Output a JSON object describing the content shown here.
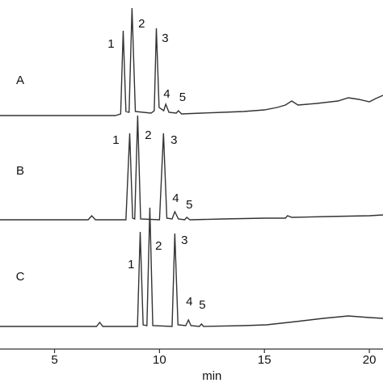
{
  "chart_data": [
    {
      "type": "line",
      "label": "A",
      "color": "#333333",
      "xlim": [
        2.4,
        20.65
      ],
      "ylim": [
        0,
        150
      ],
      "x": [
        2.4,
        7.9,
        8.15,
        8.27,
        8.4,
        8.55,
        8.69,
        8.85,
        9.6,
        9.75,
        9.85,
        9.98,
        10.2,
        10.3,
        10.45,
        10.8,
        10.9,
        11.05,
        12,
        13,
        14,
        15,
        15.6,
        16.0,
        16.3,
        16.6,
        17.5,
        18.5,
        19.0,
        19.5,
        20.0,
        20.3,
        20.65
      ],
      "values": [
        0,
        0,
        2,
        105,
        5,
        4,
        133,
        5,
        3,
        6,
        108,
        10,
        6,
        14,
        4,
        3,
        6,
        2,
        3,
        4,
        5,
        7,
        10,
        13,
        18,
        13,
        15,
        18,
        22,
        20,
        17,
        21,
        25
      ],
      "annotations": [
        {
          "text": "1",
          "x": 7.69,
          "y": 88
        },
        {
          "text": "2",
          "x": 9.15,
          "y": 113
        },
        {
          "text": "3",
          "x": 10.27,
          "y": 95
        },
        {
          "text": "4",
          "x": 10.35,
          "y": 26
        },
        {
          "text": "5",
          "x": 11.1,
          "y": 22
        }
      ]
    },
    {
      "type": "line",
      "label": "B",
      "color": "#333333",
      "xlim": [
        2.4,
        20.65
      ],
      "ylim": [
        0,
        150
      ],
      "x": [
        2.4,
        6.6,
        6.77,
        6.95,
        8.4,
        8.58,
        8.72,
        8.82,
        8.96,
        9.1,
        10.0,
        10.19,
        10.35,
        10.6,
        10.73,
        10.9,
        11.2,
        11.3,
        11.45,
        13,
        15,
        16.0,
        16.1,
        16.3,
        18,
        20,
        20.65
      ],
      "values": [
        0,
        0,
        5,
        0,
        0,
        107,
        2,
        1,
        129,
        1,
        0,
        107,
        2,
        1,
        10,
        1,
        0,
        3,
        0,
        1,
        2,
        2,
        5,
        3,
        4,
        5,
        6
      ],
      "annotations": [
        {
          "text": "1",
          "x": 7.92,
          "y": 98
        },
        {
          "text": "2",
          "x": 9.46,
          "y": 104
        },
        {
          "text": "3",
          "x": 10.69,
          "y": 98
        },
        {
          "text": "4",
          "x": 10.77,
          "y": 26
        },
        {
          "text": "5",
          "x": 11.42,
          "y": 18
        }
      ]
    },
    {
      "type": "line",
      "label": "C",
      "color": "#333333",
      "xlim": [
        2.4,
        20.65
      ],
      "ylim": [
        0,
        150
      ],
      "x": [
        2.4,
        7.0,
        7.15,
        7.3,
        8.95,
        9.08,
        9.22,
        9.4,
        9.54,
        9.68,
        10.6,
        10.73,
        10.88,
        11.25,
        11.38,
        11.5,
        11.9,
        12.0,
        12.1,
        14,
        15.1,
        16.5,
        17.8,
        19.0,
        20.0,
        20.65
      ],
      "values": [
        0,
        0,
        5,
        0,
        0,
        117,
        2,
        1,
        147,
        1,
        0,
        115,
        2,
        1,
        8,
        1,
        0,
        3,
        0,
        1,
        2,
        6,
        10,
        13,
        11,
        10
      ],
      "annotations": [
        {
          "text": "1",
          "x": 8.65,
          "y": 76
        },
        {
          "text": "2",
          "x": 9.96,
          "y": 99
        },
        {
          "text": "3",
          "x": 11.19,
          "y": 106
        },
        {
          "text": "4",
          "x": 11.42,
          "y": 30
        },
        {
          "text": "5",
          "x": 12.04,
          "y": 26
        }
      ],
      "xlabel": "min",
      "xticks": [
        5,
        10,
        15,
        20
      ]
    }
  ]
}
